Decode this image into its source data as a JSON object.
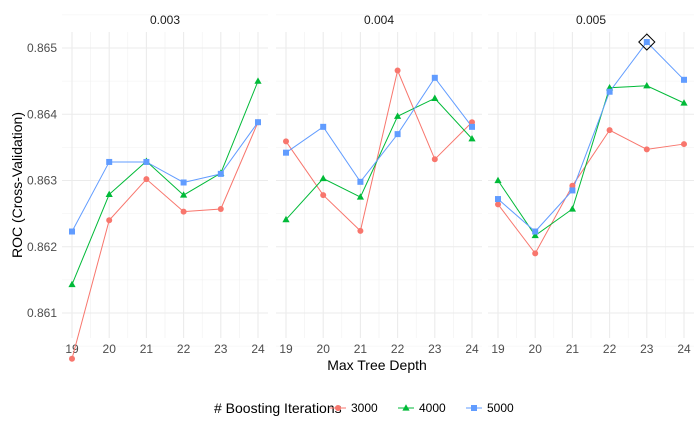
{
  "chart_data": {
    "type": "line",
    "facet_label_values": [
      "0.003",
      "0.004",
      "0.005"
    ],
    "xlabel": "Max Tree Depth",
    "ylabel": "ROC (Cross-Validation)",
    "x": [
      19,
      20,
      21,
      22,
      23,
      24
    ],
    "x_tick_labels": [
      "19",
      "20",
      "21",
      "22",
      "23",
      "24"
    ],
    "y_ticks": [
      0.861,
      0.862,
      0.863,
      0.864,
      0.865
    ],
    "y_tick_labels": [
      "0.861",
      "0.862",
      "0.863",
      "0.864",
      "0.865"
    ],
    "ylim": [
      0.8601,
      0.8654
    ],
    "grid": true,
    "legend": {
      "title": "# Boosting Iterations",
      "position": "bottom",
      "entries": [
        "3000",
        "4000",
        "5000"
      ]
    },
    "series_colors": [
      "#F8766D",
      "#00BA38",
      "#619CFF"
    ],
    "series_markers": [
      "circle",
      "triangle",
      "square"
    ],
    "facets": [
      {
        "label": "0.003",
        "series": [
          {
            "name": "3000",
            "values": [
              0.86031,
              0.8624,
              0.86302,
              0.86253,
              0.86257,
              0.86388
            ]
          },
          {
            "name": "4000",
            "values": [
              0.86143,
              0.86279,
              0.86329,
              0.86278,
              0.86311,
              0.8645
            ]
          },
          {
            "name": "5000",
            "values": [
              0.86223,
              0.86328,
              0.86328,
              0.86297,
              0.8631,
              0.86388
            ]
          }
        ]
      },
      {
        "label": "0.004",
        "series": [
          {
            "name": "3000",
            "values": [
              0.86359,
              0.86278,
              0.86224,
              0.86466,
              0.86332,
              0.86388
            ]
          },
          {
            "name": "4000",
            "values": [
              0.86241,
              0.86303,
              0.86275,
              0.86397,
              0.86424,
              0.86363
            ]
          },
          {
            "name": "5000",
            "values": [
              0.86342,
              0.86381,
              0.86298,
              0.8637,
              0.86455,
              0.86381
            ]
          }
        ]
      },
      {
        "label": "0.005",
        "series": [
          {
            "name": "3000",
            "values": [
              0.86264,
              0.8619,
              0.86292,
              0.86376,
              0.86347,
              0.86355
            ]
          },
          {
            "name": "4000",
            "values": [
              0.863,
              0.86217,
              0.86257,
              0.8644,
              0.86443,
              0.86417
            ]
          },
          {
            "name": "5000",
            "values": [
              0.86272,
              0.86223,
              0.86285,
              0.86434,
              0.86509,
              0.86452
            ]
          }
        ]
      }
    ],
    "highlight": {
      "facet": "0.005",
      "x": 23,
      "series": "5000",
      "marker": "diamond"
    }
  }
}
